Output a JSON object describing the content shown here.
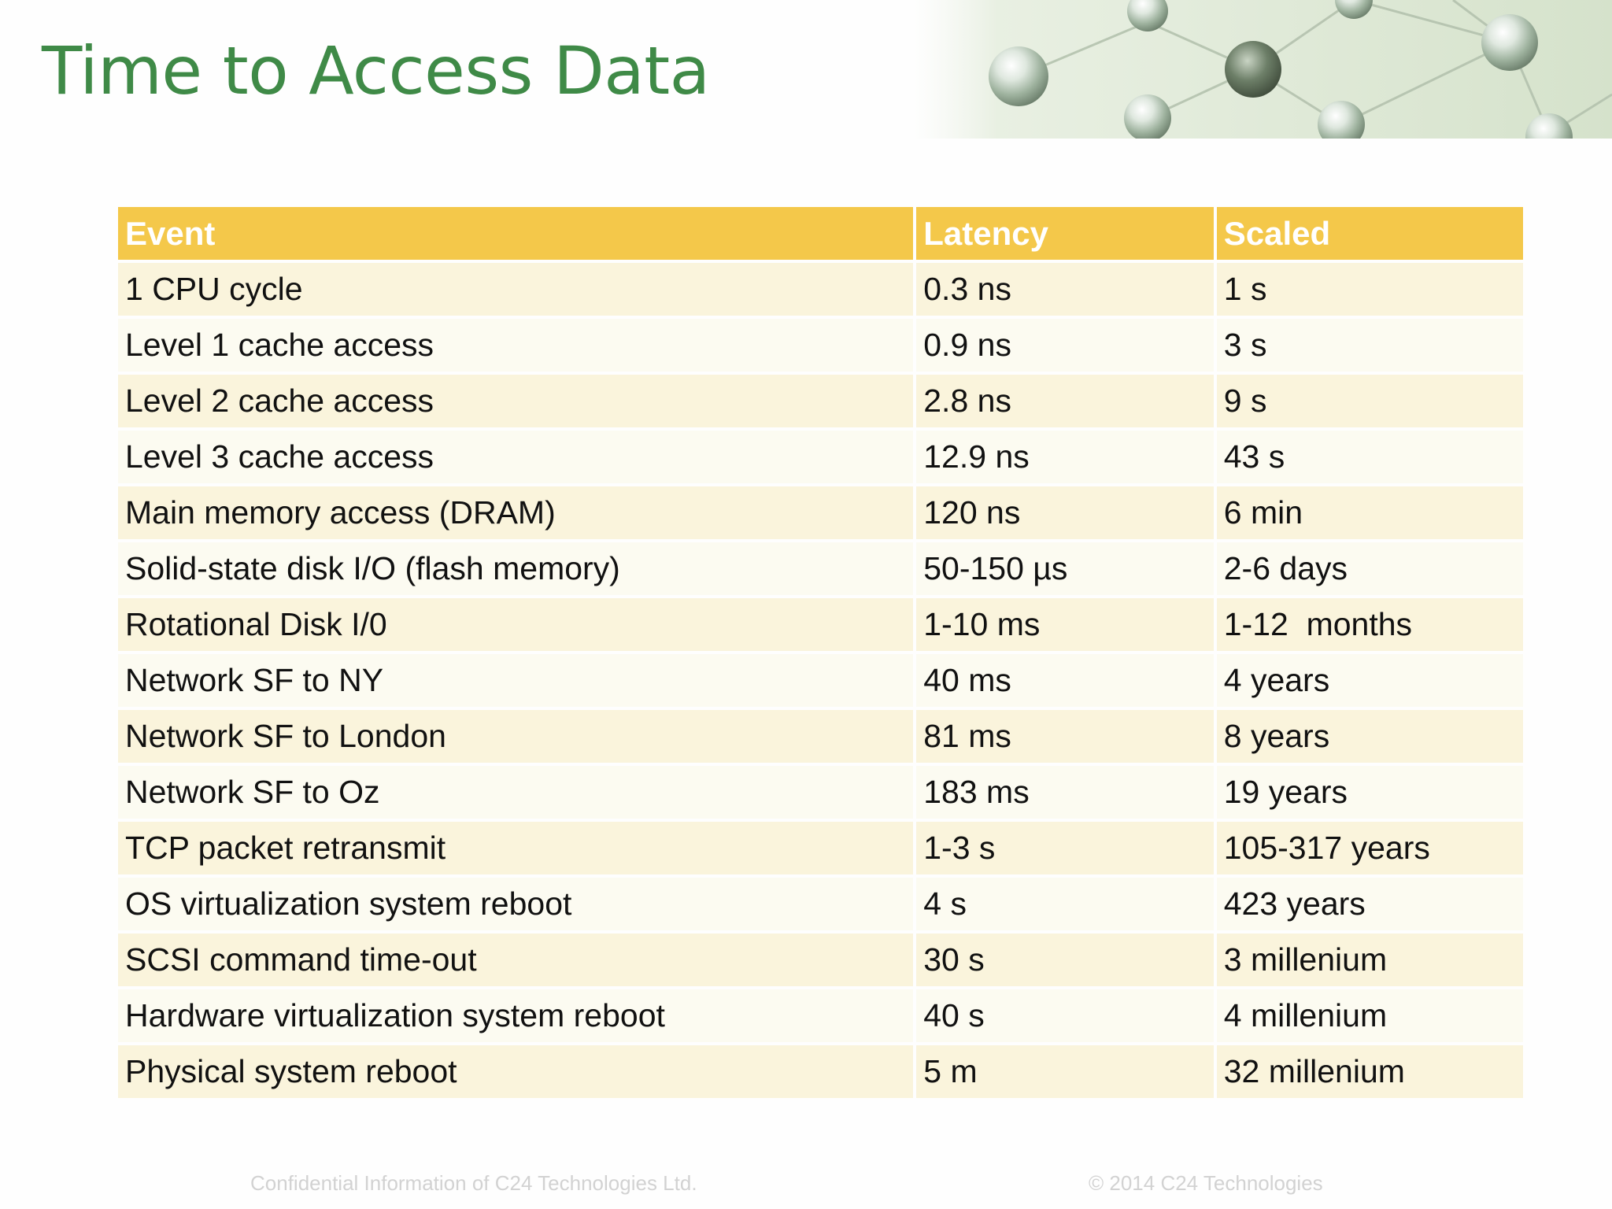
{
  "slide": {
    "title": "Time to Access Data"
  },
  "table": {
    "headers": {
      "event": "Event",
      "latency": "Latency",
      "scaled": "Scaled"
    },
    "rows": [
      {
        "event": "1 CPU cycle",
        "latency": "0.3 ns",
        "scaled": "1 s"
      },
      {
        "event": "Level 1 cache access",
        "latency": "0.9 ns",
        "scaled": "3 s"
      },
      {
        "event": "Level 2 cache access",
        "latency": "2.8 ns",
        "scaled": "9 s"
      },
      {
        "event": "Level 3 cache access",
        "latency": "12.9 ns",
        "scaled": "43 s"
      },
      {
        "event": "Main memory access (DRAM)",
        "latency": "120 ns",
        "scaled": "6 min"
      },
      {
        "event": "Solid-state disk I/O (flash memory)",
        "latency": "50-150 µs",
        "scaled": "2-6 days"
      },
      {
        "event": "Rotational Disk I/0",
        "latency": "1-10 ms",
        "scaled": "1-12  months"
      },
      {
        "event": "Network SF to NY",
        "latency": "40 ms",
        "scaled": "4 years"
      },
      {
        "event": "Network SF to London",
        "latency": "81 ms",
        "scaled": "8 years"
      },
      {
        "event": "Network SF to Oz",
        "latency": "183 ms",
        "scaled": "19 years"
      },
      {
        "event": "TCP packet retransmit",
        "latency": "1-3 s",
        "scaled": "105-317 years"
      },
      {
        "event": "OS virtualization system reboot",
        "latency": "4 s",
        "scaled": "423 years"
      },
      {
        "event": "SCSI command time-out",
        "latency": "30 s",
        "scaled": "3 millenium"
      },
      {
        "event": "Hardware virtualization system reboot",
        "latency": "40 s",
        "scaled": "4 millenium"
      },
      {
        "event": "Physical system reboot",
        "latency": "5 m",
        "scaled": "32 millenium"
      }
    ]
  },
  "footer": {
    "confidential": "Confidential Information of C24 Technologies Ltd.",
    "copyright": "© 2014 C24 Technologies"
  },
  "colors": {
    "title": "#3f8a47",
    "header_background": "#f4c84a",
    "row_odd": "#faf4dc",
    "row_even": "#fcfbf1",
    "footer_text": "#d2d2d2"
  },
  "decoration": {
    "image": "network-spheres"
  }
}
